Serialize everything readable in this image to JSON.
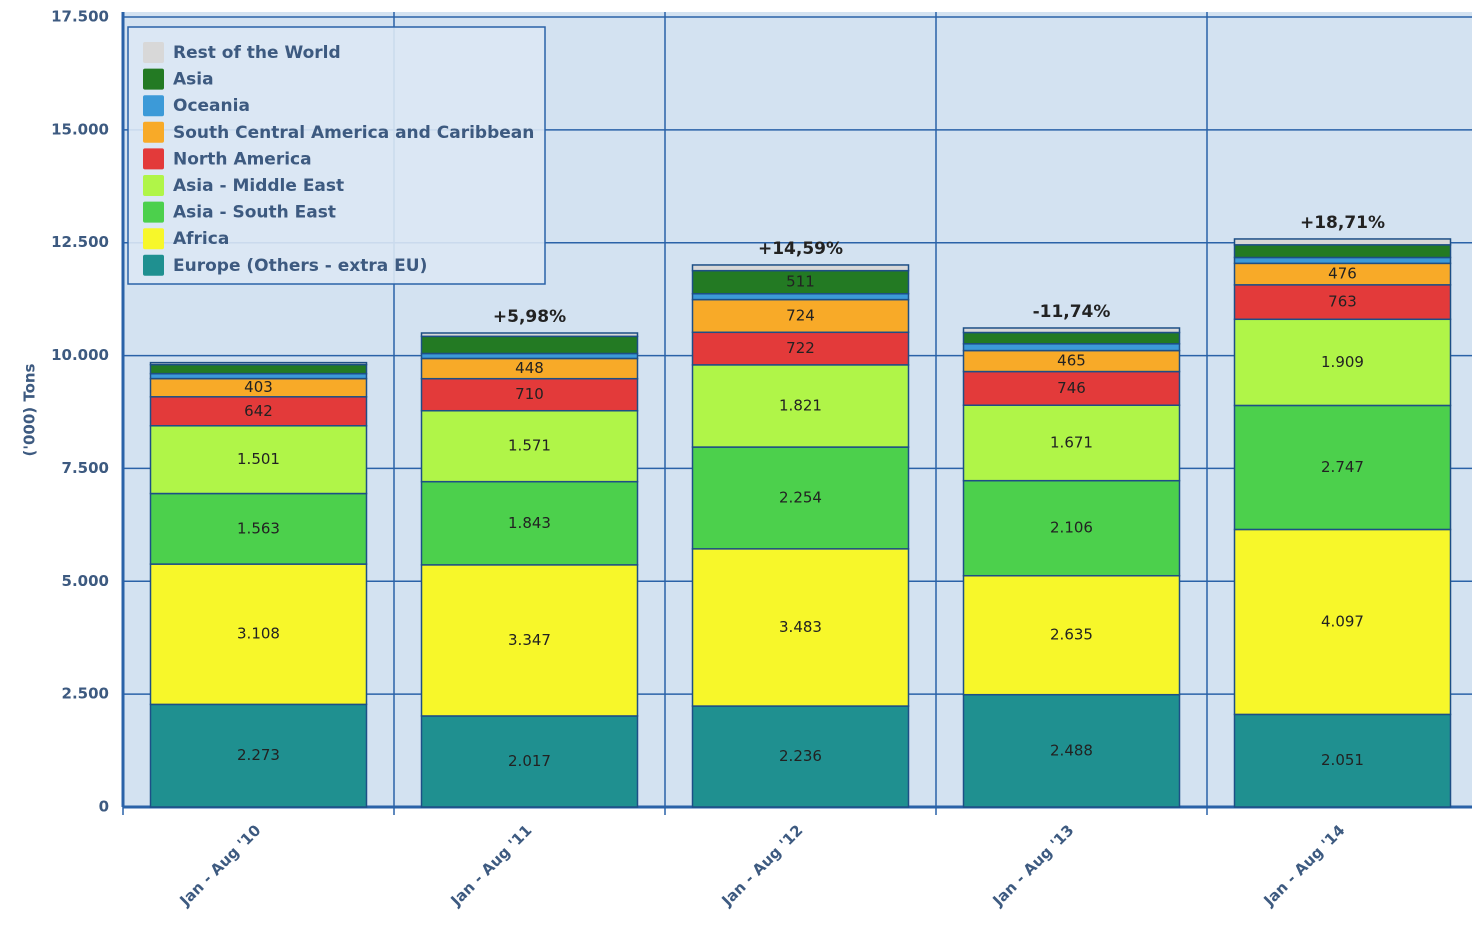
{
  "chart_data": {
    "type": "stacked_bar",
    "y_label": "('000) Tons",
    "categories": [
      "Jan - Aug '10",
      "Jan - Aug '11",
      "Jan - Aug '12",
      "Jan - Aug '13",
      "Jan - Aug '14"
    ],
    "annotations": [
      null,
      "+5,98%",
      "+14,59%",
      "-11,74%",
      "+18,71%"
    ],
    "ylim": [
      0,
      17500
    ],
    "yticks": [
      0,
      {
        "value": 2500,
        "label": "2.500"
      },
      {
        "value": 5000,
        "label": "5.000"
      },
      {
        "value": 7500,
        "label": "7.500"
      },
      {
        "value": 10000,
        "label": "10.000"
      },
      {
        "value": 12500,
        "label": "12.500"
      },
      {
        "value": 15000,
        "label": "15.000"
      },
      {
        "value": 17500,
        "label": "17.500"
      }
    ],
    "grid": true,
    "legend": "upper left",
    "series": [
      {
        "name": "Europe (Others - extra EU)",
        "color": "#1f9090",
        "values": [
          2273,
          2017,
          2236,
          2488,
          2051
        ],
        "value_labels": [
          "2.273",
          "2.017",
          "2.236",
          "2.488",
          "2.051"
        ]
      },
      {
        "name": "Africa",
        "color": "#f7f72a",
        "values": [
          3108,
          3347,
          3483,
          2635,
          4097
        ],
        "value_labels": [
          "3.108",
          "3.347",
          "3.483",
          "2.635",
          "4.097"
        ]
      },
      {
        "name": "Asia - South East",
        "color": "#4cd04c",
        "values": [
          1563,
          1843,
          2254,
          2106,
          2747
        ],
        "value_labels": [
          "1.563",
          "1.843",
          "2.254",
          "2.106",
          "2.747"
        ]
      },
      {
        "name": "Asia - Middle East",
        "color": "#b0f548",
        "values": [
          1501,
          1571,
          1821,
          1671,
          1909
        ],
        "value_labels": [
          "1.501",
          "1.571",
          "1.821",
          "1.671",
          "1.909"
        ]
      },
      {
        "name": "North America",
        "color": "#e33a3a",
        "values": [
          642,
          710,
          722,
          746,
          763
        ],
        "value_labels": [
          "642",
          "710",
          "722",
          "746",
          "763"
        ]
      },
      {
        "name": "South Central America and Caribbean",
        "color": "#f8aa28",
        "values": [
          403,
          448,
          724,
          465,
          476
        ],
        "value_labels": [
          "403",
          "448",
          "724",
          "465",
          "476"
        ]
      },
      {
        "name": "Oceania",
        "color": "#3c9ad8",
        "values": [
          110,
          110,
          130,
          150,
          130
        ]
      },
      {
        "name": "Asia",
        "color": "#237a23",
        "values": [
          200,
          380,
          511,
          250,
          280
        ],
        "value_labels": [
          null,
          null,
          "511",
          null,
          null
        ]
      },
      {
        "name": "Rest of the World",
        "color": "#d8d8d8",
        "values": [
          44,
          74,
          126,
          100,
          130
        ]
      }
    ]
  }
}
